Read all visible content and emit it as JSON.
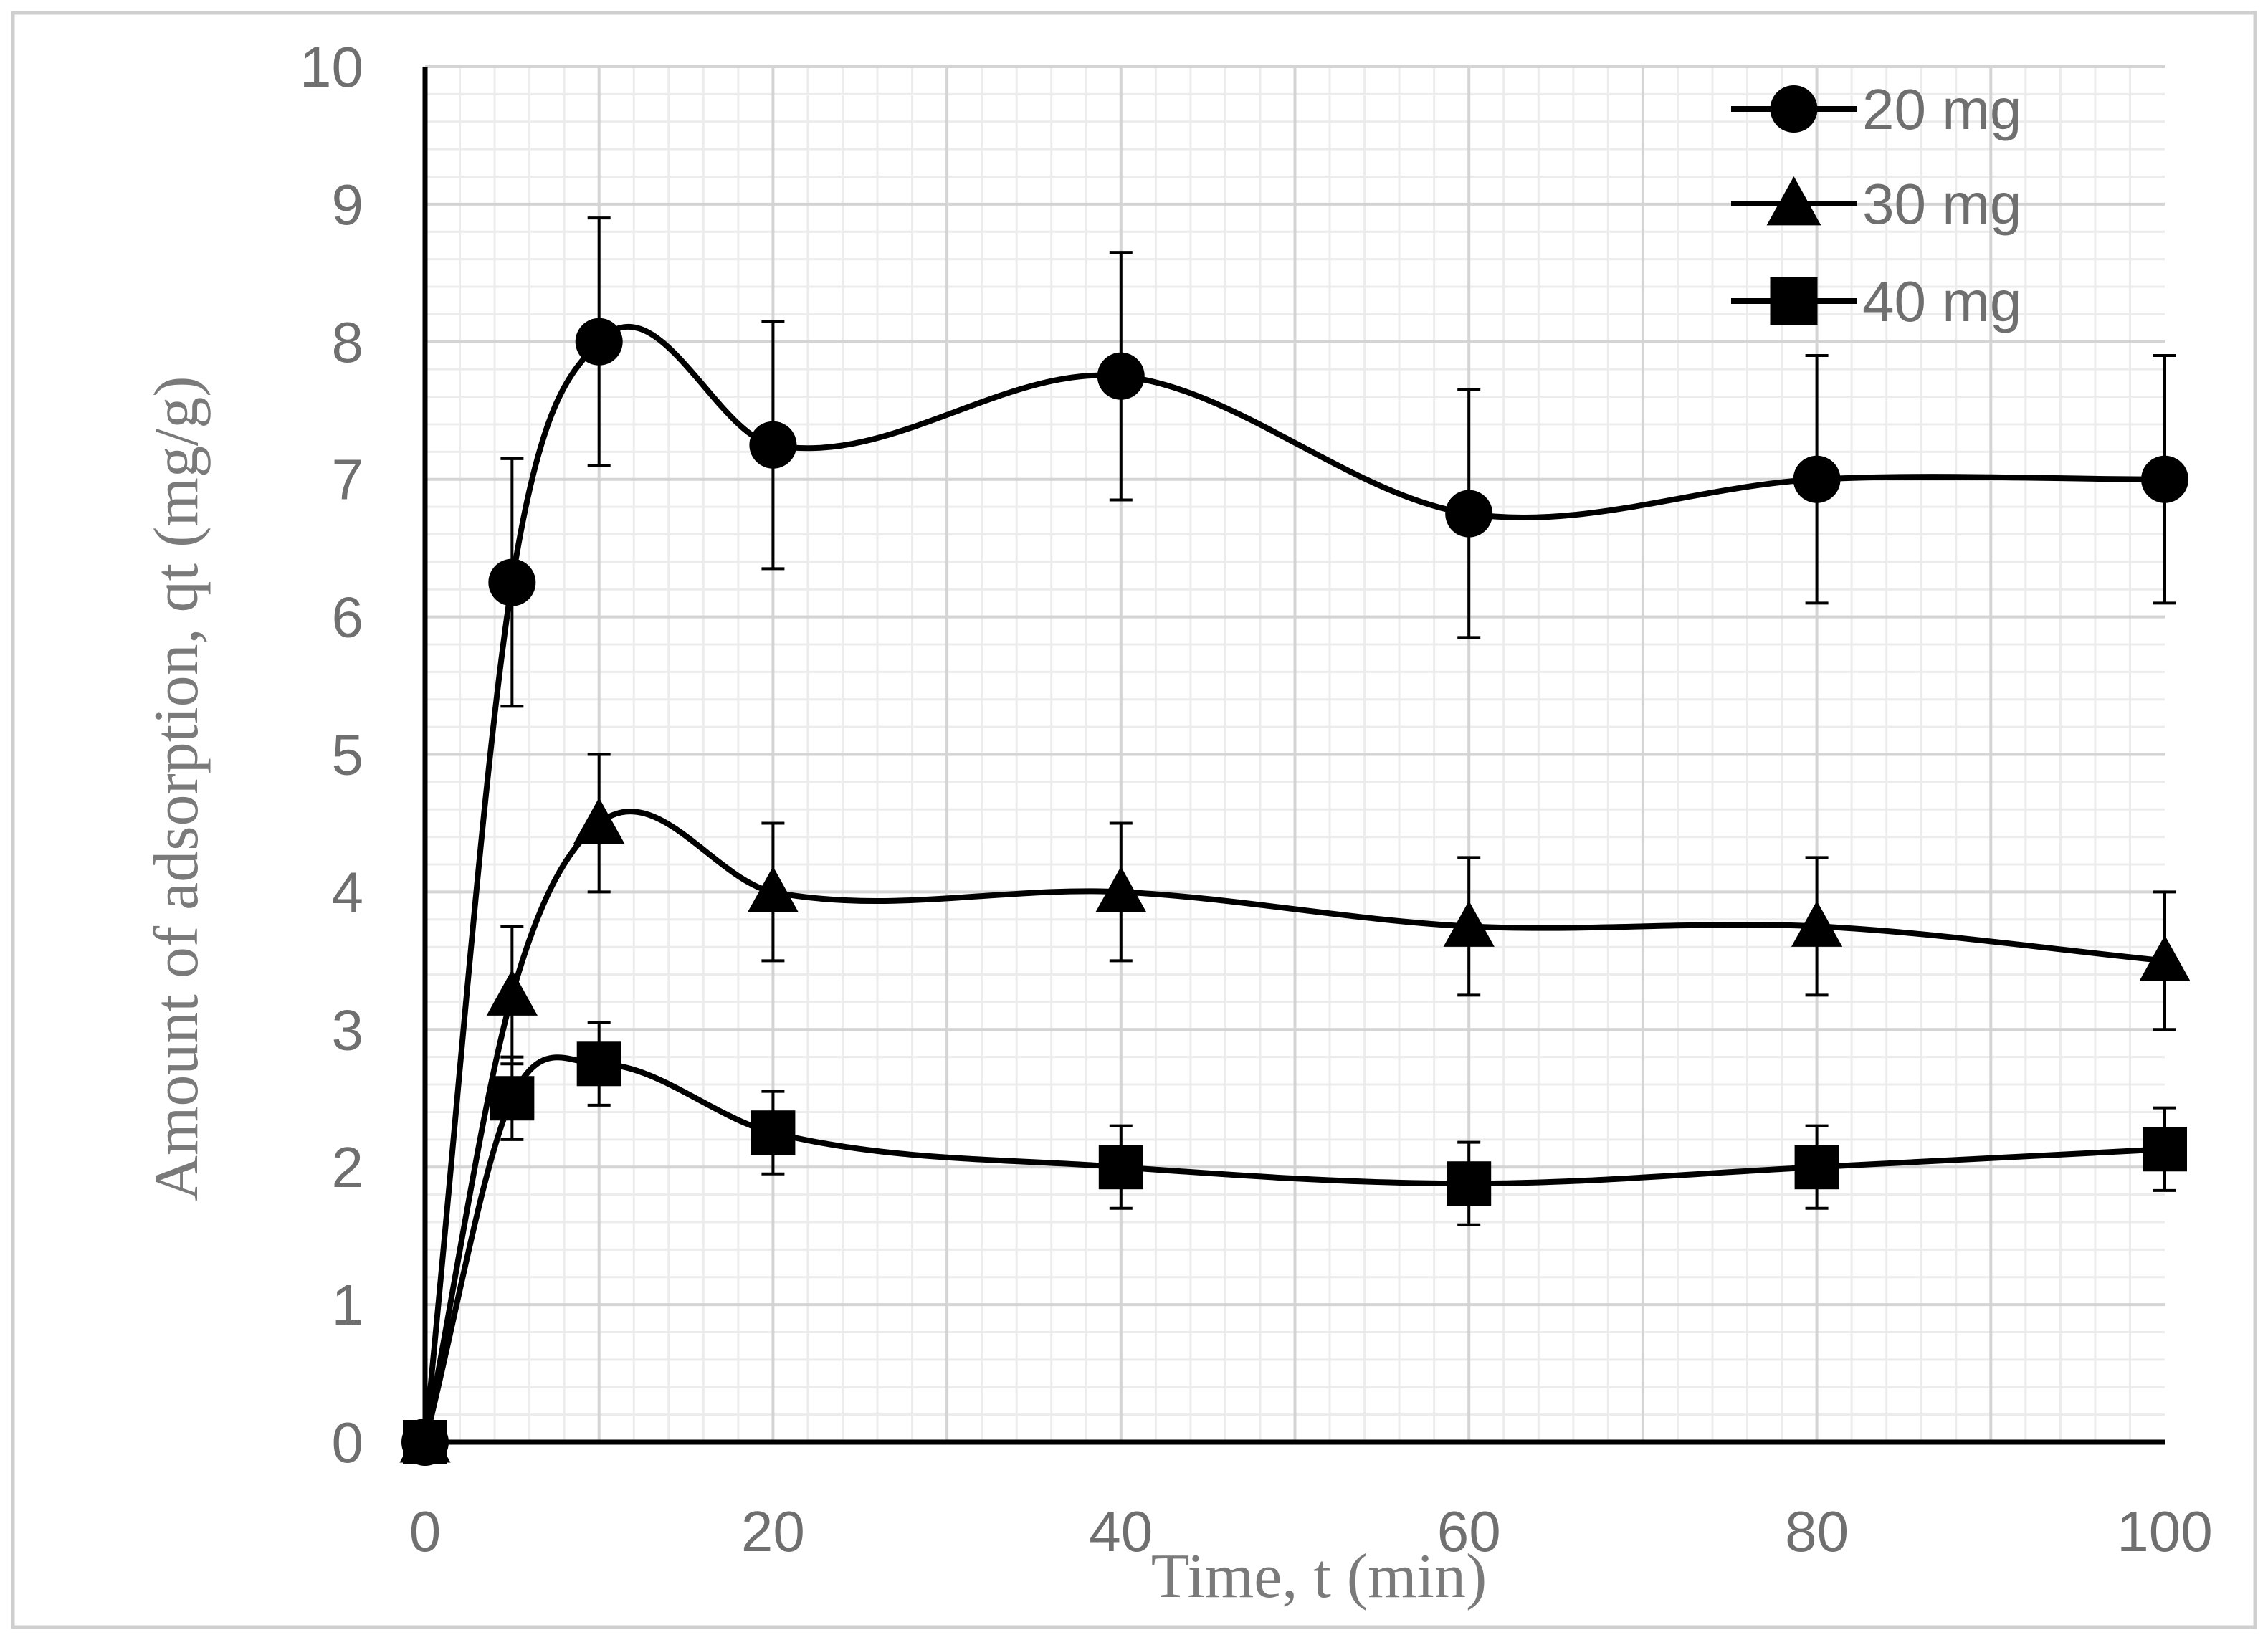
{
  "chart_data": {
    "type": "line",
    "title": "",
    "xlabel": "Time, t (min)",
    "ylabel": "Amount of adsorption, qt (mg/g)",
    "xlim": [
      0,
      100
    ],
    "ylim": [
      0,
      10
    ],
    "xticks": [
      0,
      20,
      40,
      60,
      80,
      100
    ],
    "yticks": [
      0,
      1,
      2,
      3,
      4,
      5,
      6,
      7,
      8,
      9,
      10
    ],
    "grid": true,
    "legend_position": "top-right",
    "x": [
      0,
      5,
      10,
      20,
      40,
      60,
      80,
      100
    ],
    "series": [
      {
        "name": "20 mg",
        "marker": "circle",
        "values": [
          0,
          6.25,
          8.0,
          7.25,
          7.75,
          6.75,
          7.0,
          7.0
        ],
        "error": [
          0,
          0.9,
          0.9,
          0.9,
          0.9,
          0.9,
          0.9,
          0.9
        ]
      },
      {
        "name": "30 mg",
        "marker": "triangle",
        "values": [
          0,
          3.25,
          4.5,
          4.0,
          4.0,
          3.75,
          3.75,
          3.5
        ],
        "error": [
          0,
          0.5,
          0.5,
          0.5,
          0.5,
          0.5,
          0.5,
          0.5
        ]
      },
      {
        "name": "40 mg",
        "marker": "square",
        "values": [
          0,
          2.5,
          2.75,
          2.25,
          2.0,
          1.88,
          2.0,
          2.13
        ],
        "error": [
          0,
          0.3,
          0.3,
          0.3,
          0.3,
          0.3,
          0.3,
          0.3
        ]
      }
    ]
  }
}
